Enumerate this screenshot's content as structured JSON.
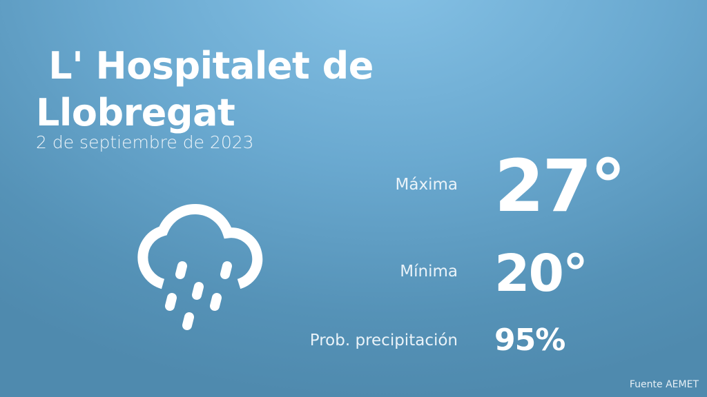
{
  "location": {
    "line1": " L' Hospitalet de",
    "line2": "Llobregat"
  },
  "date": "2 de septiembre de 2023",
  "weather_icon": "rain-cloud-icon",
  "max": {
    "label": "Máxima",
    "value": "27°"
  },
  "min": {
    "label": "Mínima",
    "value": "20°"
  },
  "precip": {
    "label": "Prob. precipitación",
    "value": "95%"
  },
  "source": "Fuente AEMET",
  "colors": {
    "background_top": "#86c2e6",
    "background_bottom": "#4f8aae",
    "text": "#ffffff"
  }
}
